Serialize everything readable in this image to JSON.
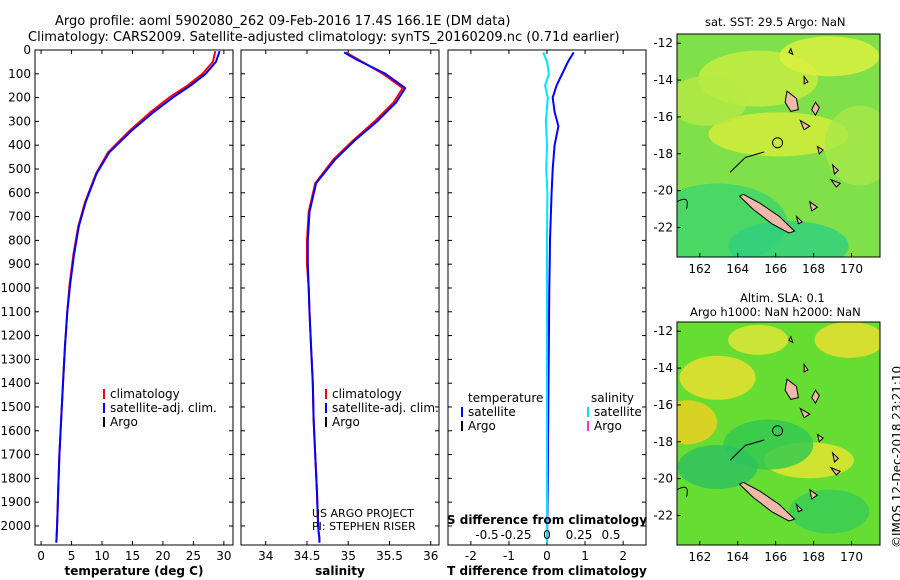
{
  "header": {
    "line1": "Argo profile: aoml 5902080_262 09-Feb-2016 17.4S 166.1E (DM data)",
    "line2": "Climatology: CARS2009. Satellite-adjusted climatology: synTS_20160209.nc (0.71d earlier)"
  },
  "colors": {
    "climatology": "#ff0000",
    "satellite": "#0000ff",
    "argo": "#000000",
    "s_satellite": "#00e5ff",
    "s_argo": "#ff33cc"
  },
  "chart_data": [
    {
      "type": "line",
      "xlabel": "temperature (deg C)",
      "ylabel": "",
      "xlim": [
        -1,
        31.5
      ],
      "ylim": [
        2080,
        0
      ],
      "x_ticks": [
        0,
        5,
        10,
        15,
        20,
        25,
        30
      ],
      "y_ticks": [
        0,
        100,
        200,
        300,
        400,
        500,
        600,
        700,
        800,
        900,
        1000,
        1100,
        1200,
        1300,
        1400,
        1500,
        1600,
        1700,
        1800,
        1900,
        2000
      ],
      "legend": [
        "climatology",
        "satellite-adj. clim.",
        "Argo"
      ],
      "series": [
        {
          "name": "climatology",
          "color": "#ff0000",
          "x": [
            28.6,
            28.2,
            26.5,
            24.0,
            21.0,
            18.0,
            14.5,
            11.0,
            9.0,
            7.2,
            6.1,
            5.3,
            4.7,
            4.3,
            3.9,
            3.6,
            3.3,
            3.0,
            2.8,
            2.7,
            2.6,
            2.5
          ],
          "y": [
            5,
            50,
            100,
            150,
            200,
            260,
            340,
            430,
            520,
            640,
            740,
            860,
            980,
            1100,
            1250,
            1400,
            1550,
            1700,
            1850,
            1950,
            2020,
            2070
          ]
        },
        {
          "name": "satellite-adj. clim.",
          "color": "#0000ff",
          "x": [
            29.3,
            28.7,
            27.0,
            24.5,
            21.6,
            18.5,
            14.8,
            11.2,
            9.1,
            7.3,
            6.2,
            5.4,
            4.8,
            4.3,
            3.9,
            3.6,
            3.3,
            3.0,
            2.8,
            2.7,
            2.6,
            2.5
          ],
          "y": [
            5,
            50,
            100,
            150,
            200,
            260,
            340,
            430,
            520,
            640,
            740,
            860,
            980,
            1100,
            1250,
            1400,
            1550,
            1700,
            1850,
            1950,
            2020,
            2070
          ]
        }
      ]
    },
    {
      "type": "line",
      "xlabel": "salinity",
      "xlim": [
        33.7,
        36.1
      ],
      "ylim": [
        2080,
        0
      ],
      "x_ticks": [
        34,
        34.5,
        35,
        35.5,
        36
      ],
      "legend": [
        "climatology",
        "satellite-adj. clim.",
        "Argo"
      ],
      "series": [
        {
          "name": "climatology",
          "color": "#ff0000",
          "x": [
            34.97,
            35.12,
            35.42,
            35.66,
            35.55,
            35.32,
            35.06,
            34.82,
            34.6,
            34.52,
            34.5,
            34.5,
            34.52,
            34.53,
            34.55,
            34.57,
            34.58,
            34.6,
            34.62,
            34.63,
            34.64,
            34.65,
            34.65
          ],
          "y": [
            10,
            40,
            100,
            160,
            220,
            300,
            380,
            460,
            560,
            680,
            800,
            900,
            1000,
            1100,
            1250,
            1400,
            1550,
            1700,
            1850,
            1950,
            2020,
            2050,
            2070
          ]
        },
        {
          "name": "satellite-adj. clim.",
          "color": "#0000ff",
          "x": [
            34.95,
            35.1,
            35.45,
            35.69,
            35.58,
            35.35,
            35.08,
            34.84,
            34.61,
            34.53,
            34.51,
            34.51,
            34.52,
            34.53,
            34.55,
            34.57,
            34.58,
            34.6,
            34.62,
            34.63,
            34.64,
            34.65,
            34.65
          ],
          "y": [
            10,
            40,
            100,
            160,
            220,
            300,
            380,
            460,
            560,
            680,
            800,
            900,
            1000,
            1100,
            1250,
            1400,
            1550,
            1700,
            1850,
            1950,
            2020,
            2050,
            2070
          ]
        }
      ],
      "annotations": [
        "US ARGO PROJECT",
        "PI: STEPHEN RISER"
      ]
    },
    {
      "type": "line",
      "xlabel": "T difference from climatology",
      "xlabel_top": "S difference from climatology",
      "xlim": [
        -2.6,
        2.6
      ],
      "ylim": [
        2080,
        0
      ],
      "x_ticks": [
        -2,
        -1,
        0,
        1,
        2
      ],
      "x_ticks_top": [
        "-0.5",
        "-0.25",
        "0",
        "0.25",
        "0.5"
      ],
      "legend_left_title": "temperature",
      "legend_right_title": "salinity",
      "legend": [
        "satellite",
        "Argo",
        "satellite",
        "Argo"
      ],
      "series": [
        {
          "name": "satellite",
          "color": "#0000ff",
          "x": [
            0.7,
            0.55,
            0.4,
            0.25,
            0.15,
            0.2,
            0.3,
            0.2,
            0.15,
            0.12,
            0.1,
            0.08,
            0.07,
            0.06,
            0.05,
            0.04,
            0.03,
            0.02,
            0.01,
            0.0
          ],
          "y": [
            10,
            50,
            100,
            150,
            200,
            260,
            320,
            400,
            500,
            600,
            700,
            800,
            900,
            1000,
            1200,
            1400,
            1600,
            1800,
            1950,
            2070
          ]
        },
        {
          "name": "satellite",
          "color": "#00e5ff",
          "x": [
            -0.1,
            0.0,
            0.05,
            -0.05,
            0.02,
            -0.03,
            0.0,
            -0.02,
            0.01,
            0.0,
            0.0,
            0.0,
            0.0,
            0.0,
            0.0,
            0.0
          ],
          "y": [
            10,
            50,
            100,
            150,
            200,
            300,
            400,
            500,
            600,
            800,
            1000,
            1200,
            1400,
            1600,
            1800,
            2070
          ]
        }
      ]
    },
    {
      "type": "heatmap",
      "title": "sat. SST: 29.5 Argo: NaN",
      "x_ticks": [
        162,
        164,
        166,
        168,
        170
      ],
      "y_ticks": [
        -12,
        -14,
        -16,
        -18,
        -20,
        -22
      ],
      "xlim": [
        160.8,
        171.5
      ],
      "ylim": [
        -23.6,
        -11.5
      ],
      "marker": [
        166.1,
        -17.4
      ]
    },
    {
      "type": "heatmap",
      "title_line1": "Altim. SLA: 0.1",
      "title_line2": "Argo h1000: NaN h2000: NaN",
      "x_ticks": [
        162,
        164,
        166,
        168,
        170
      ],
      "y_ticks": [
        -12,
        -14,
        -16,
        -18,
        -20,
        -22
      ],
      "xlim": [
        160.8,
        171.5
      ],
      "ylim": [
        -23.6,
        -11.5
      ],
      "marker": [
        166.1,
        -17.4
      ]
    }
  ],
  "footer_vertical": "©IMOS 12-Dec-2018 23:21:10"
}
